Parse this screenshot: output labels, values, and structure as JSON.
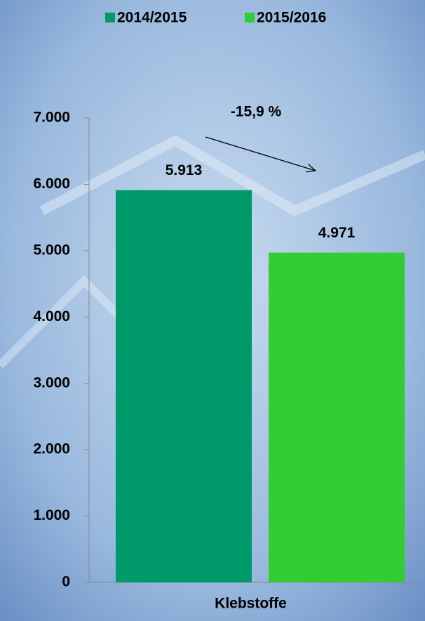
{
  "chart_data": {
    "type": "bar",
    "categories": [
      "Klebstoffe"
    ],
    "series": [
      {
        "name": "2014/2015",
        "color": "#009a6a",
        "values": [
          5913
        ],
        "value_labels": [
          "5.913"
        ]
      },
      {
        "name": "2015/2016",
        "color": "#33cc33",
        "values": [
          4971
        ],
        "value_labels": [
          "4.971"
        ]
      }
    ],
    "ylim": [
      0,
      7000
    ],
    "yticks": [
      0,
      {
        "value": 1000,
        "label": "1.000"
      },
      {
        "value": 2000,
        "label": "2.000"
      },
      {
        "value": 3000,
        "label": "3.000"
      },
      {
        "value": 4000,
        "label": "4.000"
      },
      {
        "value": 5000,
        "label": "5.000"
      },
      {
        "value": 6000,
        "label": "6.000"
      },
      {
        "value": 7000,
        "label": "7.000"
      }
    ],
    "annotation": "-15,9 %"
  }
}
